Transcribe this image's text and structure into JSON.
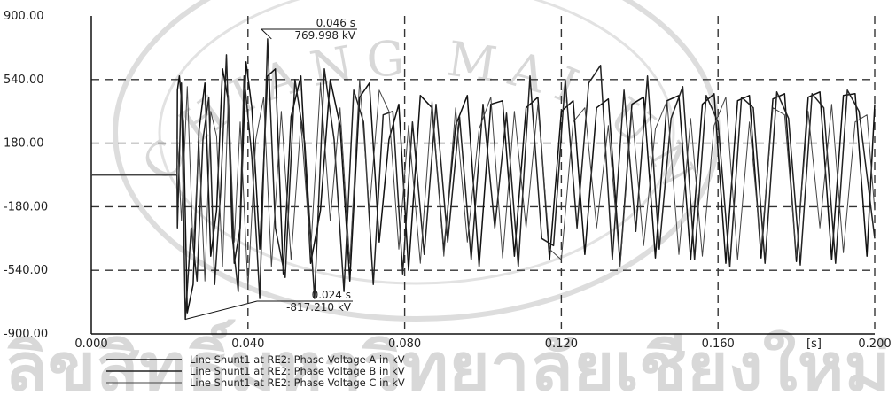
{
  "chart_data": {
    "type": "line",
    "title": "",
    "xlabel": "",
    "ylabel": "",
    "x_unit_label": "[s]",
    "xlim": [
      0.0,
      0.2
    ],
    "ylim": [
      -900,
      900
    ],
    "x_ticks": [
      "0.000",
      "0.040",
      "0.080",
      "0.120",
      "0.160",
      "0.200"
    ],
    "y_ticks": [
      "900.00",
      "540.00",
      "180.00",
      "-180.00",
      "-540.00",
      "-900.00"
    ],
    "grid": "dashed",
    "legend_position": "bottom",
    "series": [
      {
        "name": "Line Shunt1 at RE2: Phase Voltage A in kV",
        "color": "#111111",
        "x": [
          0.0,
          0.0219,
          0.022,
          0.0225,
          0.0235,
          0.0245,
          0.026,
          0.0275,
          0.029,
          0.0305,
          0.032,
          0.0335,
          0.035,
          0.0365,
          0.038,
          0.0395,
          0.041,
          0.043,
          0.045,
          0.047,
          0.049,
          0.051,
          0.0535,
          0.056,
          0.0585,
          0.061,
          0.0635,
          0.066,
          0.0685,
          0.071,
          0.0735,
          0.076,
          0.0785,
          0.081,
          0.084,
          0.087,
          0.09,
          0.093,
          0.096,
          0.099,
          0.102,
          0.105,
          0.108,
          0.111,
          0.114,
          0.117,
          0.12,
          0.123,
          0.126,
          0.129,
          0.132,
          0.135,
          0.138,
          0.141,
          0.144,
          0.147,
          0.15,
          0.153,
          0.156,
          0.159,
          0.162,
          0.165,
          0.168,
          0.171,
          0.174,
          0.177,
          0.18,
          0.183,
          0.186,
          0.189,
          0.192,
          0.195,
          0.198,
          0.2
        ],
        "values": [
          0,
          0,
          480,
          560,
          300,
          -780,
          -620,
          250,
          520,
          -460,
          -200,
          600,
          420,
          -500,
          -300,
          640,
          380,
          -420,
          560,
          600,
          -560,
          330,
          560,
          -500,
          -200,
          540,
          280,
          -600,
          440,
          520,
          -380,
          200,
          400,
          -540,
          450,
          380,
          -430,
          280,
          450,
          -520,
          400,
          420,
          -460,
          380,
          440,
          -480,
          360,
          420,
          -450,
          380,
          430,
          -500,
          400,
          440,
          -470,
          420,
          450,
          -480,
          400,
          460,
          -500,
          420,
          450,
          -470,
          430,
          460,
          -490,
          440,
          470,
          -480,
          450,
          460,
          -460,
          400
        ]
      },
      {
        "name": "Line Shunt1 at RE2: Phase Voltage B in kV",
        "color": "#222222",
        "x": [
          0.0,
          0.0219,
          0.022,
          0.023,
          0.024,
          0.0255,
          0.027,
          0.0285,
          0.03,
          0.0315,
          0.033,
          0.0345,
          0.036,
          0.0375,
          0.039,
          0.041,
          0.043,
          0.045,
          0.047,
          0.0495,
          0.052,
          0.0545,
          0.057,
          0.0595,
          0.062,
          0.0645,
          0.067,
          0.0695,
          0.072,
          0.0745,
          0.077,
          0.0795,
          0.082,
          0.085,
          0.088,
          0.091,
          0.094,
          0.097,
          0.1,
          0.103,
          0.106,
          0.109,
          0.112,
          0.115,
          0.118,
          0.121,
          0.124,
          0.127,
          0.13,
          0.133,
          0.136,
          0.139,
          0.142,
          0.145,
          0.148,
          0.151,
          0.154,
          0.157,
          0.16,
          0.163,
          0.166,
          0.169,
          0.172,
          0.175,
          0.178,
          0.181,
          0.184,
          0.187,
          0.19,
          0.193,
          0.196,
          0.2
        ],
        "values": [
          0,
          0,
          -300,
          520,
          -817,
          -300,
          -600,
          200,
          440,
          -620,
          -100,
          680,
          -350,
          -660,
          560,
          100,
          -700,
          770,
          -300,
          -580,
          540,
          180,
          -700,
          600,
          200,
          -660,
          480,
          300,
          -620,
          340,
          360,
          -560,
          300,
          -450,
          400,
          -380,
          330,
          -480,
          400,
          -300,
          350,
          -520,
          560,
          -360,
          -400,
          540,
          -300,
          520,
          620,
          -480,
          480,
          -320,
          560,
          -420,
          320,
          500,
          -480,
          450,
          300,
          -520,
          440,
          380,
          -500,
          470,
          320,
          -510,
          460,
          380,
          -500,
          480,
          360,
          -360
        ]
      },
      {
        "name": "Line Shunt1 at RE2: Phase Voltage C in kV",
        "color": "#444444",
        "x": [
          0.0,
          0.0219,
          0.022,
          0.023,
          0.0245,
          0.026,
          0.0275,
          0.029,
          0.0305,
          0.032,
          0.0335,
          0.035,
          0.0365,
          0.038,
          0.04,
          0.042,
          0.044,
          0.046,
          0.0485,
          0.051,
          0.0535,
          0.056,
          0.0585,
          0.061,
          0.0635,
          0.066,
          0.0685,
          0.071,
          0.0735,
          0.076,
          0.0785,
          0.081,
          0.084,
          0.087,
          0.09,
          0.093,
          0.096,
          0.099,
          0.102,
          0.105,
          0.108,
          0.111,
          0.114,
          0.117,
          0.12,
          0.123,
          0.126,
          0.129,
          0.132,
          0.135,
          0.138,
          0.141,
          0.144,
          0.147,
          0.15,
          0.153,
          0.156,
          0.159,
          0.162,
          0.165,
          0.168,
          0.171,
          0.174,
          0.177,
          0.18,
          0.183,
          0.186,
          0.189,
          0.192,
          0.195,
          0.198,
          0.2
        ],
        "values": [
          0,
          0,
          200,
          -260,
          500,
          -420,
          180,
          -600,
          360,
          220,
          -520,
          450,
          -380,
          300,
          -640,
          200,
          440,
          -520,
          360,
          -480,
          300,
          -440,
          520,
          -260,
          380,
          -500,
          540,
          -200,
          480,
          360,
          -420,
          280,
          -500,
          420,
          -460,
          380,
          -380,
          260,
          440,
          -470,
          360,
          -300,
          400,
          -420,
          -480,
          300,
          380,
          -300,
          280,
          -520,
          360,
          -400,
          260,
          420,
          -450,
          320,
          -460,
          280,
          440,
          -480,
          300,
          -420,
          380,
          340,
          -460,
          360,
          -300,
          400,
          -440,
          300,
          340,
          -200
        ]
      }
    ],
    "annotations": [
      {
        "time": "0.046 s",
        "value": "769.998 kV",
        "x": 0.046,
        "y": 769.998
      },
      {
        "time": "0.024 s",
        "value": "-817.210 kV",
        "x": 0.024,
        "y": -817.21
      }
    ]
  },
  "watermark": {
    "thai_text": "ลิขสิทธิ์มหาวิทยาลัยเชียงใหม่",
    "seal_text": "CHIANG MAI UNIVERSITY",
    "color": "#d8d8d8"
  }
}
